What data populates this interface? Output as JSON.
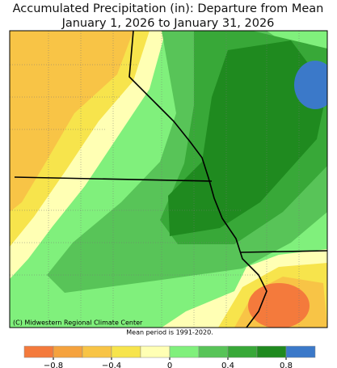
{
  "header": {
    "title_line1": "Accumulated Precipitation (in): Departure from Mean",
    "title_line2": "January 1, 2026 to January 31, 2026"
  },
  "map": {
    "credit": "(C) Midwestern Regional Climate Center",
    "note": "Mean period is 1991-2020."
  },
  "legend": {
    "colors": [
      "#f47a3c",
      "#f5a23e",
      "#f8c446",
      "#f7e44c",
      "#ffffb4",
      "#80f07c",
      "#58c458",
      "#38a838",
      "#1f8a1f",
      "#3b79c9"
    ],
    "ticks": [
      {
        "value": -0.8,
        "label": "−0.8"
      },
      {
        "value": -0.4,
        "label": "−0.4"
      },
      0,
      0.4,
      0.8
    ]
  }
}
